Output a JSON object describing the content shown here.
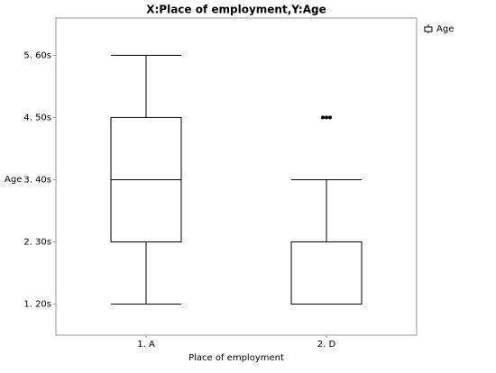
{
  "chart_data": {
    "type": "box",
    "title": "X:Place of employment,Y:Age",
    "x_label": "Place of employment",
    "y_label": "Age",
    "categories": [
      "1. A",
      "2. D"
    ],
    "series": [
      {
        "name": "Age",
        "color": "#000000",
        "boxes": [
          {
            "min": 1,
            "q1": 2,
            "median": 3,
            "q3": 4,
            "max": 5,
            "outliers": []
          },
          {
            "min": 1,
            "q1": 1,
            "median": 1,
            "q3": 2,
            "max": 3,
            "outliers": [
              4,
              4,
              4
            ]
          }
        ]
      }
    ],
    "ylim": [
      0.5,
      5.6
    ],
    "yticks": [
      {
        "value": 1,
        "label": "1. 20s"
      },
      {
        "value": 2,
        "label": "2. 30s"
      },
      {
        "value": 3,
        "label": "3. 40s"
      },
      {
        "value": 4,
        "label": "4. 50s"
      },
      {
        "value": 5,
        "label": "5. 60s"
      }
    ],
    "legend": "top-right"
  }
}
